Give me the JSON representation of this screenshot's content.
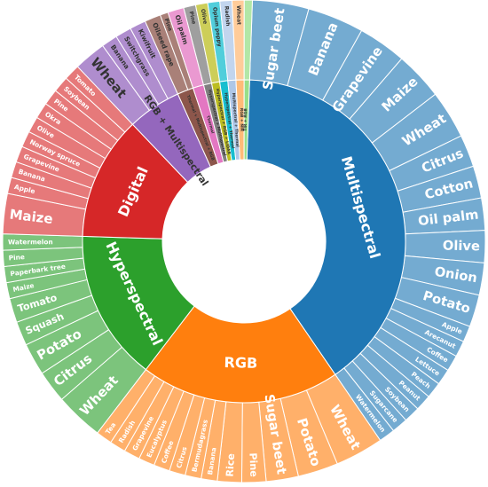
{
  "chart_data": {
    "type": "sunburst",
    "sectors": [
      {
        "name": "Multispectral",
        "color": "#1f77b4",
        "children": [
          {
            "name": "Sugar beet",
            "value": 7
          },
          {
            "name": "Banana",
            "value": 7
          },
          {
            "name": "Grapevine",
            "value": 6
          },
          {
            "name": "Maize",
            "value": 6
          },
          {
            "name": "Wheat",
            "value": 6
          },
          {
            "name": "Citrus",
            "value": 4
          },
          {
            "name": "Cotton",
            "value": 4
          },
          {
            "name": "Oil palm",
            "value": 4
          },
          {
            "name": "Olive",
            "value": 4
          },
          {
            "name": "Onion",
            "value": 4
          },
          {
            "name": "Potato",
            "value": 4
          },
          {
            "name": "Apple",
            "value": 2
          },
          {
            "name": "Arecanut",
            "value": 2
          },
          {
            "name": "Coffee",
            "value": 2
          },
          {
            "name": "Lettuce",
            "value": 2
          },
          {
            "name": "Peach",
            "value": 2
          },
          {
            "name": "Peanut",
            "value": 2
          },
          {
            "name": "Soybean",
            "value": 2
          },
          {
            "name": "Sugarcane",
            "value": 2
          },
          {
            "name": "Watermelon",
            "value": 2
          }
        ]
      },
      {
        "name": "RGB",
        "color": "#ff7f0e",
        "children": [
          {
            "name": "Wheat",
            "value": 6
          },
          {
            "name": "Potato",
            "value": 5
          },
          {
            "name": "Sugar beet",
            "value": 4
          },
          {
            "name": "Pine",
            "value": 3
          },
          {
            "name": "Rice",
            "value": 3
          },
          {
            "name": "Banana",
            "value": 2
          },
          {
            "name": "Bermudagrass",
            "value": 2
          },
          {
            "name": "Citrus",
            "value": 2
          },
          {
            "name": "Coffee",
            "value": 2
          },
          {
            "name": "Eucalyptus",
            "value": 2
          },
          {
            "name": "Grapevine",
            "value": 2
          },
          {
            "name": "Radish",
            "value": 2
          },
          {
            "name": "Tea",
            "value": 2
          }
        ]
      },
      {
        "name": "Hyperspectral",
        "color": "#2ca02c",
        "children": [
          {
            "name": "Wheat",
            "value": 6
          },
          {
            "name": "Citrus",
            "value": 4
          },
          {
            "name": "Potato",
            "value": 4
          },
          {
            "name": "Squash",
            "value": 3
          },
          {
            "name": "Tomato",
            "value": 3
          },
          {
            "name": "Maize",
            "value": 2
          },
          {
            "name": "Paperbark tree",
            "value": 2
          },
          {
            "name": "Pine",
            "value": 2
          },
          {
            "name": "Watermelon",
            "value": 2
          }
        ]
      },
      {
        "name": "Digital",
        "color": "#d62728",
        "children": [
          {
            "name": "Maize",
            "value": 5
          },
          {
            "name": "Apple",
            "value": 2
          },
          {
            "name": "Banana",
            "value": 2
          },
          {
            "name": "Grapevine",
            "value": 2
          },
          {
            "name": "Norway spruce",
            "value": 2
          },
          {
            "name": "Olive",
            "value": 2
          },
          {
            "name": "Okra",
            "value": 2
          },
          {
            "name": "Pine",
            "value": 2
          },
          {
            "name": "Soybean",
            "value": 2
          },
          {
            "name": "Tomato",
            "value": 2
          }
        ]
      },
      {
        "name": "RGB + Multispectral",
        "color": "#9467bd",
        "children": [
          {
            "name": "Wheat",
            "value": 4
          },
          {
            "name": "Banana",
            "value": 2
          },
          {
            "name": "Switchgrass",
            "value": 2
          },
          {
            "name": "Kiwifruit",
            "value": 2
          }
        ]
      },
      {
        "name": "Thermal + Multispectral + RGB",
        "color": "#8c564b",
        "children": [
          {
            "name": "Oilseed rape",
            "value": 2
          },
          {
            "name": "Pine",
            "value": 1
          }
        ]
      },
      {
        "name": "Thermal",
        "color": "#e377c2",
        "children": [
          {
            "name": "Oil palm",
            "value": 2
          }
        ]
      },
      {
        "name": "Hyperspectral + Multispectral",
        "color": "#7f7f7f",
        "children": [
          {
            "name": "Pine",
            "value": 1.5
          }
        ]
      },
      {
        "name": "Hyperspectral + RGB + LiDAR",
        "color": "#bcbd22",
        "children": [
          {
            "name": "Olive",
            "value": 1.5
          }
        ]
      },
      {
        "name": "Hyperspectral + Thermal",
        "color": "#17becf",
        "children": [
          {
            "name": "Opium poppy",
            "value": 1.5
          }
        ]
      },
      {
        "name": "Multispectral + Thermal",
        "color": "#aec7e8",
        "children": [
          {
            "name": "Radish",
            "value": 1.5
          }
        ]
      },
      {
        "name": "RGB + NIR",
        "color": "#ffbb78",
        "children": [
          {
            "name": "Wheat",
            "value": 1.5
          }
        ]
      },
      {
        "name": "TIR + RGB",
        "color": "#98df8a",
        "children": [
          {
            "name": "",
            "value": 1
          }
        ]
      }
    ]
  }
}
